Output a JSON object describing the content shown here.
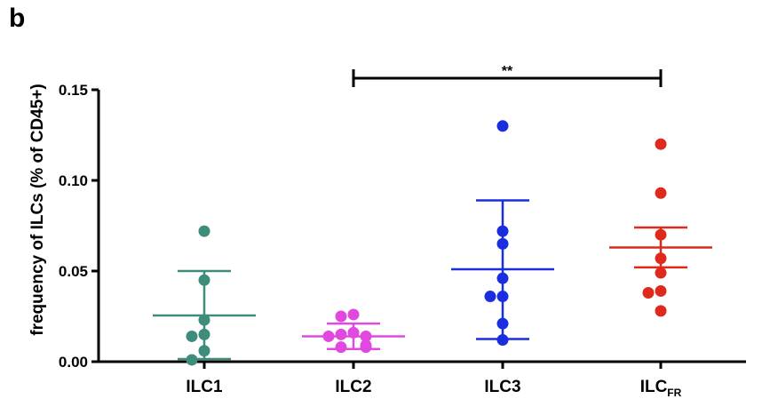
{
  "panel_label": "b",
  "chart_data": {
    "type": "scatter",
    "ylabel": "frequency of ILCs (% of CD45+)",
    "ylim": [
      0,
      0.15
    ],
    "yticks": [
      "0.00",
      "0.05",
      "0.10",
      "0.15"
    ],
    "ytick_values": [
      0,
      0.05,
      0.1,
      0.15
    ],
    "categories": [
      {
        "main": "ILC1",
        "sub": ""
      },
      {
        "main": "ILC2",
        "sub": ""
      },
      {
        "main": "ILC3",
        "sub": ""
      },
      {
        "main": "ILC",
        "sub": "FR"
      }
    ],
    "series": [
      {
        "color": "#3e8c7a",
        "mean": 0.0255,
        "upper": 0.05,
        "lower": 0.0015,
        "points": [
          0.072,
          0.045,
          0.023,
          0.015,
          0.014,
          0.006,
          0.001
        ]
      },
      {
        "color": "#e048e0",
        "mean": 0.014,
        "upper": 0.021,
        "lower": 0.007,
        "points": [
          0.026,
          0.025,
          0.016,
          0.015,
          0.014,
          0.014,
          0.009,
          0.008,
          0.008
        ]
      },
      {
        "color": "#1a2ee0",
        "mean": 0.051,
        "upper": 0.089,
        "lower": 0.0125,
        "points": [
          0.13,
          0.072,
          0.065,
          0.046,
          0.036,
          0.036,
          0.021,
          0.012
        ]
      },
      {
        "color": "#dd2a1a",
        "mean": 0.063,
        "upper": 0.074,
        "lower": 0.052,
        "points": [
          0.12,
          0.093,
          0.07,
          0.057,
          0.049,
          0.039,
          0.038,
          0.028
        ]
      }
    ],
    "significance": {
      "from": 1,
      "to": 3,
      "label": "**"
    }
  }
}
